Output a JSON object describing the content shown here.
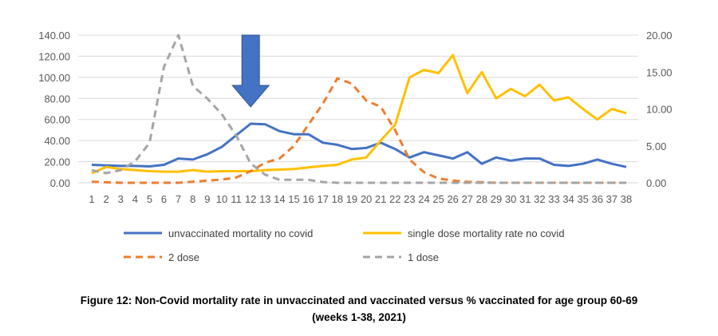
{
  "chart_data": {
    "type": "line",
    "x": [
      1,
      2,
      3,
      4,
      5,
      6,
      7,
      8,
      9,
      10,
      11,
      12,
      13,
      14,
      15,
      16,
      17,
      18,
      19,
      20,
      21,
      22,
      23,
      24,
      25,
      26,
      27,
      28,
      29,
      30,
      31,
      32,
      33,
      34,
      35,
      36,
      37,
      38
    ],
    "y_left": {
      "ylim": [
        0,
        140
      ],
      "ticks": [
        "0.00",
        "20.00",
        "40.00",
        "60.00",
        "80.00",
        "100.00",
        "120.00",
        "140.00"
      ]
    },
    "y_right": {
      "ylim": [
        0,
        20
      ],
      "ticks": [
        "0.00",
        "5.00",
        "10.00",
        "15.00",
        "20.00"
      ]
    },
    "grid": true,
    "legend_placement": "bottom",
    "series": [
      {
        "name": "unvaccinated mortality no covid",
        "axis": "left",
        "color": "#4472C4",
        "dash": false,
        "values": [
          17,
          16.5,
          16,
          16,
          15.5,
          17,
          23,
          22,
          27,
          34,
          45,
          56,
          55.5,
          49,
          46,
          46,
          38,
          36,
          32,
          33,
          38,
          32,
          24,
          29,
          26,
          23,
          29,
          18,
          24,
          21,
          23,
          23,
          17,
          16,
          18,
          22,
          18,
          15
        ]
      },
      {
        "name": "single dose mortality rate no covid",
        "axis": "left",
        "color": "#FFC000",
        "dash": false,
        "values": [
          9,
          15,
          13,
          12,
          11,
          10.5,
          10.5,
          12,
          10.5,
          11,
          11,
          11,
          12,
          12.5,
          13,
          14.5,
          16,
          17,
          22,
          24,
          40,
          55,
          100,
          107,
          104,
          121,
          85,
          105,
          80,
          89,
          82,
          93,
          78,
          81,
          70,
          60,
          70,
          66
        ]
      },
      {
        "name": "2 dose",
        "axis": "right",
        "color": "#ED7D31",
        "dash": true,
        "values": [
          0.14,
          0.07,
          0,
          0,
          0,
          0,
          0,
          0.14,
          0.29,
          0.43,
          0.71,
          1.57,
          2.71,
          3.29,
          5,
          7.86,
          10.71,
          14.14,
          13.43,
          11.14,
          10.29,
          7.14,
          3.14,
          1.43,
          0.57,
          0.29,
          0.14,
          0.07,
          0,
          0,
          0,
          0,
          0,
          0,
          0,
          0,
          0,
          0
        ]
      },
      {
        "name": "1 dose",
        "axis": "right",
        "color": "#A5A5A5",
        "dash": true,
        "values": [
          1.7,
          1.3,
          1.7,
          2.9,
          5.4,
          15.7,
          20,
          13.1,
          11.4,
          9.3,
          6.4,
          2.6,
          1.1,
          0.4,
          0.4,
          0.4,
          0.1,
          0,
          0,
          0,
          0,
          0,
          0,
          0,
          0,
          0,
          0,
          0,
          0,
          0,
          0,
          0,
          0,
          0,
          0,
          0,
          0,
          0
        ]
      }
    ],
    "annotation": {
      "type": "down-arrow",
      "at_week": 12,
      "color": "#4472C4"
    }
  },
  "caption": {
    "line1": "Figure 12: Non-Covid mortality rate in unvaccinated and vaccinated versus % vaccinated for age group 60-69",
    "line2": "(weeks 1-38, 2021)"
  }
}
